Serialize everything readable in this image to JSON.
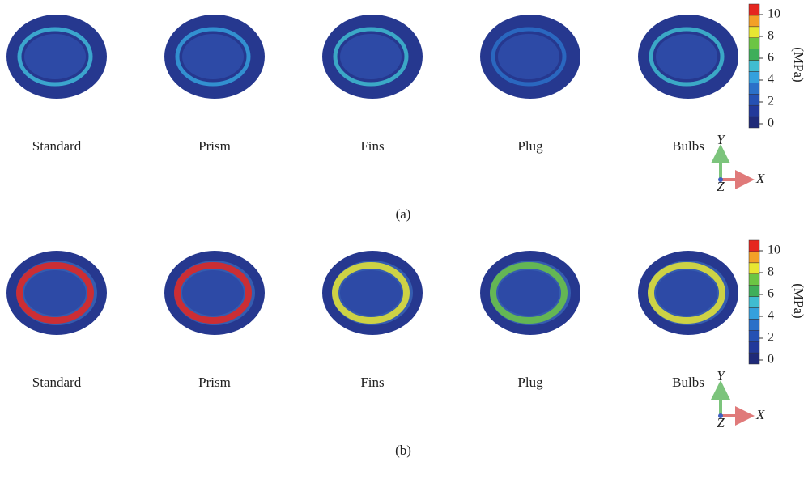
{
  "panels": [
    {
      "caption": "(a)",
      "models": [
        "Standard",
        "Prism",
        "Fins",
        "Plug",
        "Bulbs"
      ],
      "colorbar": {
        "unit": "(MPa)",
        "ticks": [
          10,
          8,
          6,
          4,
          2,
          0
        ],
        "colors": [
          "#1f2a78",
          "#22399a",
          "#2551b3",
          "#2b70c8",
          "#35a0dc",
          "#40bcd0",
          "#3fae5a",
          "#6cc544",
          "#e8e632",
          "#f3a027",
          "#e5261f"
        ]
      },
      "axes": {
        "y": "Y",
        "x": "X",
        "z": "Z"
      }
    },
    {
      "caption": "(b)",
      "models": [
        "Standard",
        "Prism",
        "Fins",
        "Plug",
        "Bulbs"
      ],
      "colorbar": {
        "unit": "(MPa)",
        "ticks": [
          10,
          8,
          6,
          4,
          2,
          0
        ],
        "colors": [
          "#1f2a78",
          "#22399a",
          "#2551b3",
          "#2b70c8",
          "#35a0dc",
          "#40bcd0",
          "#3fae5a",
          "#6cc544",
          "#e8e632",
          "#f3a027",
          "#e5261f"
        ]
      },
      "axes": {
        "y": "Y",
        "x": "X",
        "z": "Z"
      }
    }
  ]
}
